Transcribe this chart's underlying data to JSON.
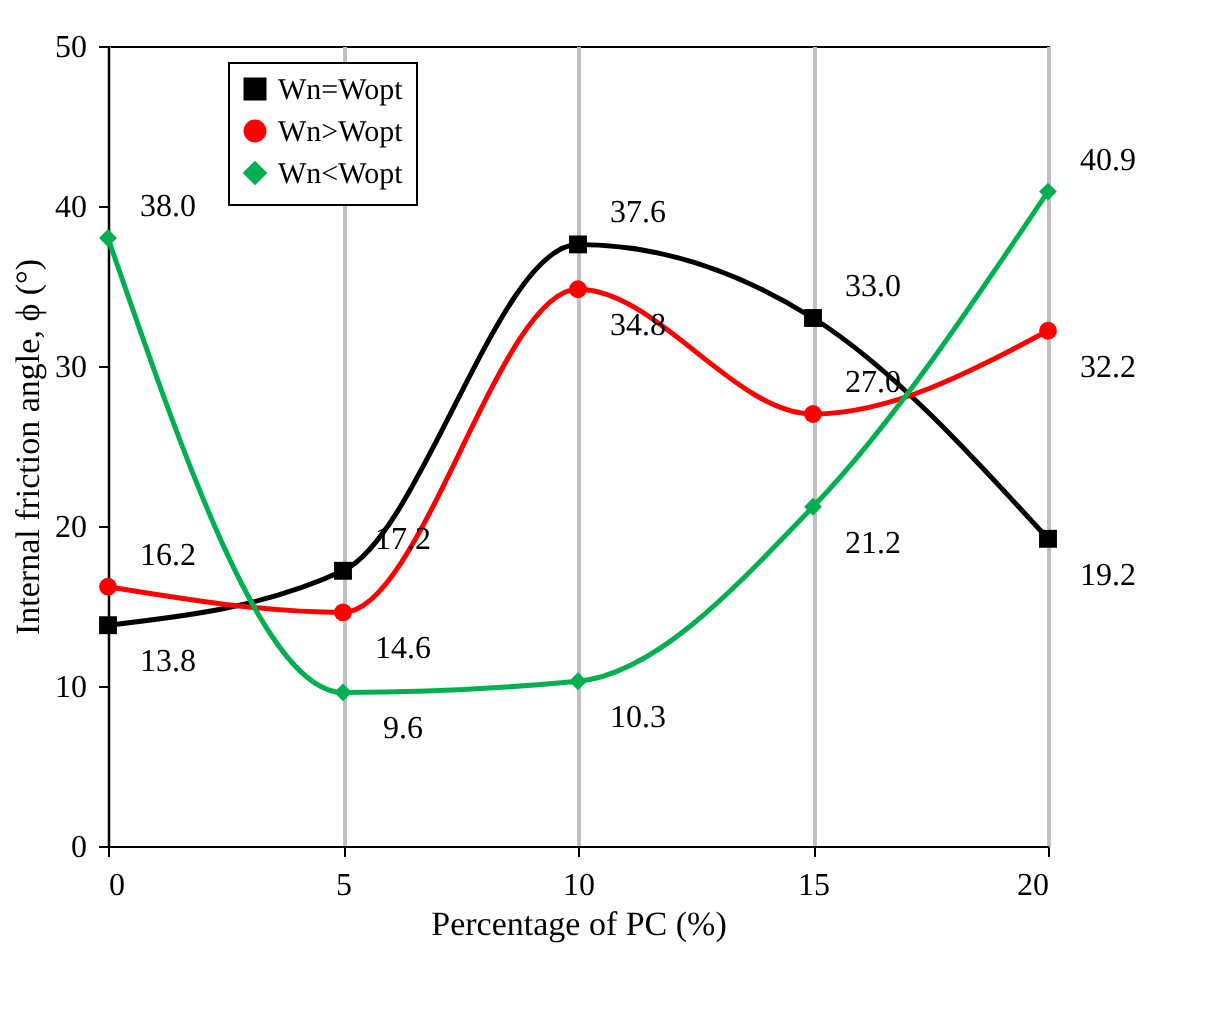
{
  "chart_data": {
    "type": "line",
    "xlabel": "Percentage of PC (%)",
    "ylabel": "Internal friction angle, ϕ (°)",
    "x": [
      0,
      5,
      10,
      15,
      20
    ],
    "xlim": [
      0,
      20
    ],
    "xticks": [
      0,
      5,
      10,
      15,
      20
    ],
    "ylim": [
      0,
      50
    ],
    "yticks": [
      0,
      10,
      20,
      30,
      40,
      50
    ],
    "grid": "x",
    "legend": "top left",
    "series": [
      {
        "name": "Wn=Wopt",
        "color": "#000000",
        "marker": "square",
        "values": [
          13.8,
          17.2,
          37.6,
          33.0,
          19.2
        ],
        "value_labels": [
          "13.8",
          "17.2",
          "37.6",
          "33.0",
          "19.2"
        ]
      },
      {
        "name": "Wn>Wopt",
        "color": "#ff0000",
        "marker": "circle",
        "values": [
          16.2,
          14.6,
          34.8,
          27.0,
          32.2
        ],
        "value_labels": [
          "16.2",
          "14.6",
          "34.8",
          "27.0",
          "32.2"
        ]
      },
      {
        "name": "Wn<Wopt",
        "color": "#00b050",
        "marker": "diamond",
        "values": [
          38.0,
          9.6,
          10.3,
          21.2,
          40.9
        ],
        "value_labels": [
          "38.0",
          "9.6",
          "10.3",
          "21.2",
          "40.9"
        ]
      }
    ]
  }
}
